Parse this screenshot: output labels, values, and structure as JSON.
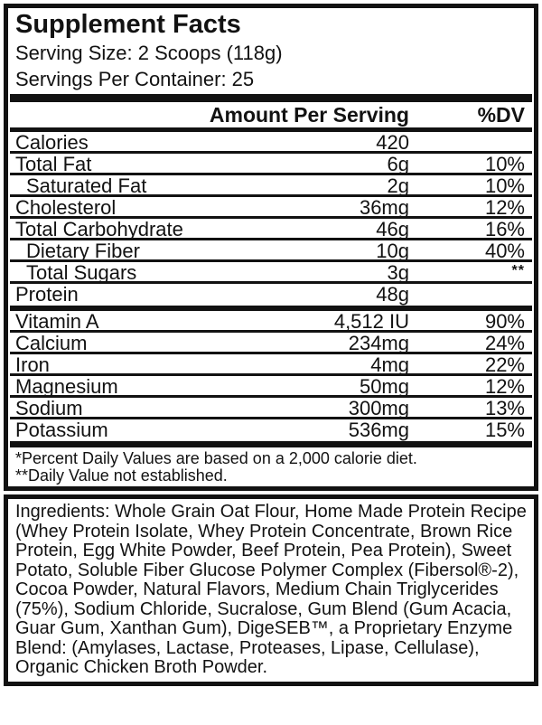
{
  "colors": {
    "ink": "#121212",
    "background": "#ffffff"
  },
  "supplement_facts": {
    "title": "Supplement Facts",
    "serving_size": "Serving Size: 2 Scoops (118g)",
    "servings_per_container": "Servings Per Container: 25",
    "columns": {
      "amount": "Amount Per Serving",
      "dv": "%DV"
    },
    "sections": [
      {
        "rows": [
          {
            "name": "Calories",
            "amount": "420",
            "dv": ""
          },
          {
            "name": "Total Fat",
            "amount": "6g",
            "dv": "10%"
          },
          {
            "name": "Saturated Fat",
            "amount": "2g",
            "dv": "10%",
            "indent": true
          },
          {
            "name": "Cholesterol",
            "amount": "36mg",
            "dv": "12%"
          },
          {
            "name": "Total Carbohydrate",
            "amount": "46g",
            "dv": "16%"
          },
          {
            "name": "Dietary Fiber",
            "amount": "10g",
            "dv": "40%",
            "indent": true
          },
          {
            "name": "Total Sugars",
            "amount": "3g",
            "dv": "**",
            "indent": true,
            "dv_super": true
          },
          {
            "name": "Protein",
            "amount": "48g",
            "dv": ""
          }
        ]
      },
      {
        "rows": [
          {
            "name": "Vitamin A",
            "amount": "4,512 IU",
            "dv": "90%"
          },
          {
            "name": "Calcium",
            "amount": "234mg",
            "dv": "24%"
          },
          {
            "name": "Iron",
            "amount": "4mg",
            "dv": "22%"
          },
          {
            "name": "Magnesium",
            "amount": "50mg",
            "dv": "12%"
          },
          {
            "name": "Sodium",
            "amount": "300mg",
            "dv": "13%"
          },
          {
            "name": "Potassium",
            "amount": "536mg",
            "dv": "15%"
          }
        ]
      }
    ],
    "footnotes": [
      "*Percent Daily Values are based on a 2,000 calorie diet.",
      "**Daily Value not established."
    ]
  },
  "ingredients": {
    "text": "Ingredients: Whole Grain Oat Flour, Home Made Protein Recipe (Whey Protein Isolate, Whey Protein Concentrate, Brown Rice Protein, Egg White Powder, Beef Protein, Pea Protein), Sweet Potato, Soluble Fiber Glucose Polymer Complex (Fibersol®-2), Cocoa Powder, Natural Flavors, Medium Chain Triglycerides (75%), Sodium Chloride, Sucralose, Gum Blend (Gum Acacia, Guar Gum, Xanthan Gum), DigeSEB™, a Proprietary Enzyme Blend: (Amylases, Lactase, Proteases, Lipase, Cellulase), Organic Chicken Broth Powder."
  }
}
